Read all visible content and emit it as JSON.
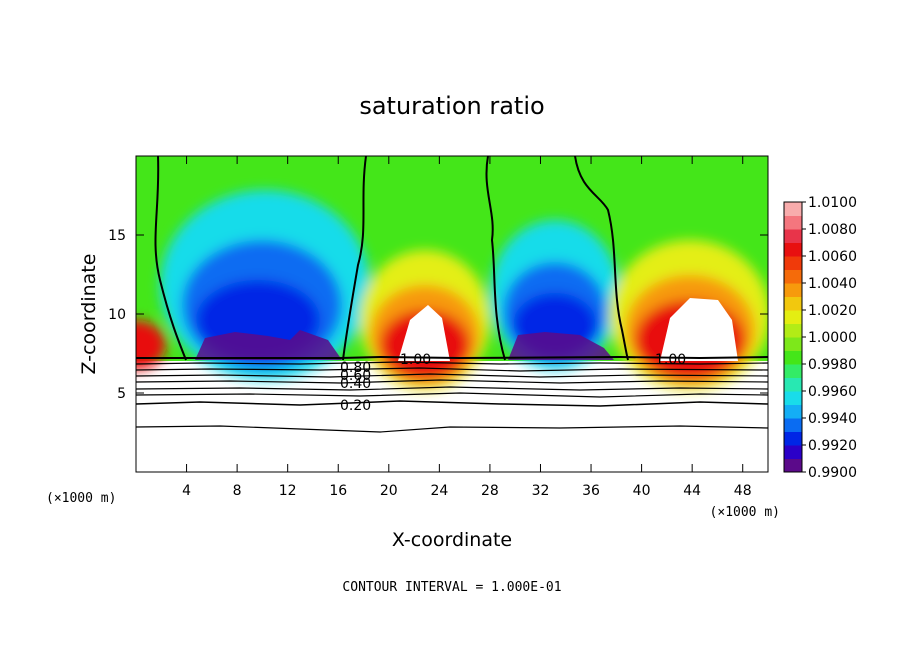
{
  "chart_data": {
    "type": "heatmap",
    "title": "saturation ratio",
    "xlabel": "X-coordinate",
    "ylabel": "Z-coordinate",
    "x_unit_label": "(×1000 m)",
    "y_unit_label": "(×1000 m)",
    "footer": "CONTOUR INTERVAL = 1.000E-01",
    "xlim": [
      0,
      50
    ],
    "ylim": [
      0,
      20
    ],
    "xticks": [
      4,
      8,
      12,
      16,
      20,
      24,
      28,
      32,
      36,
      40,
      44,
      48
    ],
    "yticks": [
      5,
      10,
      15
    ],
    "colorbar": {
      "ticks": [
        "0.9900",
        "0.9920",
        "0.9940",
        "0.9960",
        "0.9980",
        "1.0000",
        "1.0020",
        "1.0040",
        "1.0060",
        "1.0080",
        "1.0100"
      ],
      "colors": [
        "#5b0a8a",
        "#2b00c8",
        "#0026e6",
        "#0a6cf2",
        "#14aef5",
        "#19dcea",
        "#28e8b2",
        "#33ec66",
        "#44e619",
        "#7de81a",
        "#b2ec16",
        "#e4ee12",
        "#f2c80e",
        "#f79a0c",
        "#f56b0a",
        "#f03a0a",
        "#e81010",
        "#e8344a",
        "#f4767e",
        "#f8acac"
      ]
    },
    "contour_labels": [
      "1.00",
      "1.00",
      "0.80",
      "0.60",
      "0.40",
      "0.20"
    ],
    "cloud_top": 7.3,
    "features": {
      "dry_columns_x": [
        [
          3.5,
          16.5
        ],
        [
          29.0,
          38.5
        ]
      ],
      "moist_columns_x": [
        [
          17.5,
          28.0
        ],
        [
          39.5,
          50.0
        ],
        [
          0.0,
          3.5
        ]
      ]
    }
  }
}
